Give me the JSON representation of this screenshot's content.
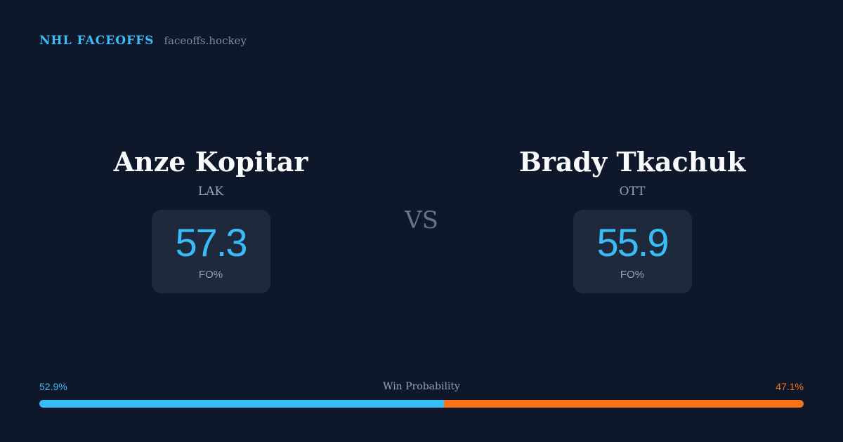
{
  "header": {
    "title": "NHL FACEOFFS",
    "site": "faceoffs.hockey"
  },
  "players": [
    {
      "name": "Anze Kopitar",
      "team": "LAK",
      "stat": 57.3,
      "stat_label": "FO%"
    },
    {
      "name": "Brady Tkachuk",
      "team": "OTT",
      "stat": 55.9,
      "stat_label": "FO%"
    }
  ],
  "vs": "VS",
  "win_probability": {
    "label": "Win Probability",
    "values": [
      52.9,
      47.1
    ],
    "value_labels": [
      "52.9%",
      "47.1%"
    ],
    "colors": [
      "#38bdf8",
      "#f97316"
    ]
  }
}
